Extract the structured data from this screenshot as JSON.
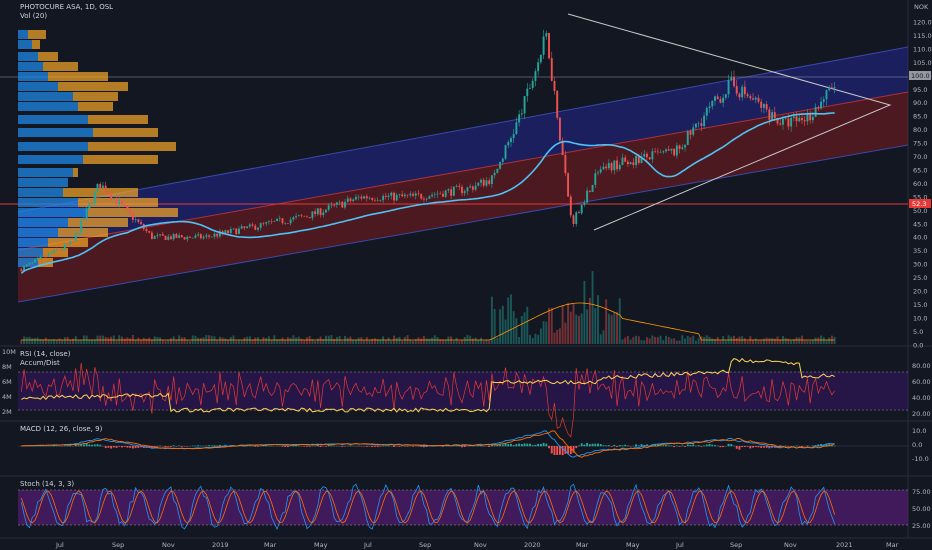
{
  "header": {
    "symbol": "PHOTOCURE ASA, 1D, OSL",
    "volume_indicator": "Vol (20)",
    "currency": "NOK"
  },
  "price_axis": {
    "ticks": [
      "120.0",
      "115.0",
      "110.0",
      "105.0",
      "100.0",
      "95.0",
      "90.0",
      "85.0",
      "80.0",
      "75.0",
      "70.0",
      "65.0",
      "60.0",
      "55.0",
      "50.0",
      "45.0",
      "40.0",
      "35.0",
      "30.0",
      "25.0",
      "20.0",
      "15.0",
      "10.0",
      "5.0",
      "0.0"
    ],
    "last_price_tag": "100.0",
    "marker_tag": "52.3"
  },
  "time_axis": [
    "Jul",
    "Sep",
    "Nov",
    "2019",
    "Mar",
    "May",
    "Jul",
    "Sep",
    "Nov",
    "2020",
    "Mar",
    "May",
    "Jul",
    "Sep",
    "Nov",
    "2021",
    "Mar"
  ],
  "panes": {
    "rsi": {
      "title": "RSI (14, close)",
      "overlay": "Accum/Dist",
      "left_ticks": [
        "10M",
        "8M",
        "6M",
        "4M",
        "2M"
      ],
      "right_ticks": [
        "80.00",
        "60.00",
        "40.00",
        "20.00"
      ]
    },
    "macd": {
      "title": "MACD (12, 26, close, 9)",
      "right_ticks": [
        "10.0",
        "0.0",
        "-10.0"
      ]
    },
    "stoch": {
      "title": "Stoch (14, 3, 3)",
      "right_ticks": [
        "75.00",
        "50.00",
        "25.00"
      ]
    }
  },
  "colors": {
    "background": "#131722",
    "up": "#26a69a",
    "down": "#ef5350",
    "ma": "#4fc3f7",
    "ad_line": "#ffd54f",
    "rsi_line": "#e53935",
    "channel_blue": "#2a2ecf",
    "channel_red": "#b71c1c",
    "vp_blue": "#1e88e5",
    "vp_gold": "#f9a825"
  },
  "chart_data": {
    "type": "candlestick",
    "y_range": [
      -2,
      125
    ],
    "approx_close_path": {
      "x": [
        "2018-06",
        "2018-08",
        "2018-09",
        "2018-11",
        "2019-01",
        "2019-03",
        "2019-05",
        "2019-07",
        "2019-09",
        "2019-11",
        "2019-12",
        "2020-01",
        "2020-02",
        "2020-03",
        "2020-04",
        "2020-05",
        "2020-07",
        "2020-08",
        "2020-09",
        "2020-10",
        "2020-11",
        "2020-12",
        "2021-01"
      ],
      "y": [
        28,
        38,
        60,
        40,
        40,
        44,
        48,
        55,
        55,
        58,
        62,
        85,
        115,
        45,
        65,
        68,
        72,
        85,
        97,
        90,
        82,
        85,
        97
      ]
    },
    "volume_profile_note": "horizontal volume-by-price bars on left edge"
  }
}
